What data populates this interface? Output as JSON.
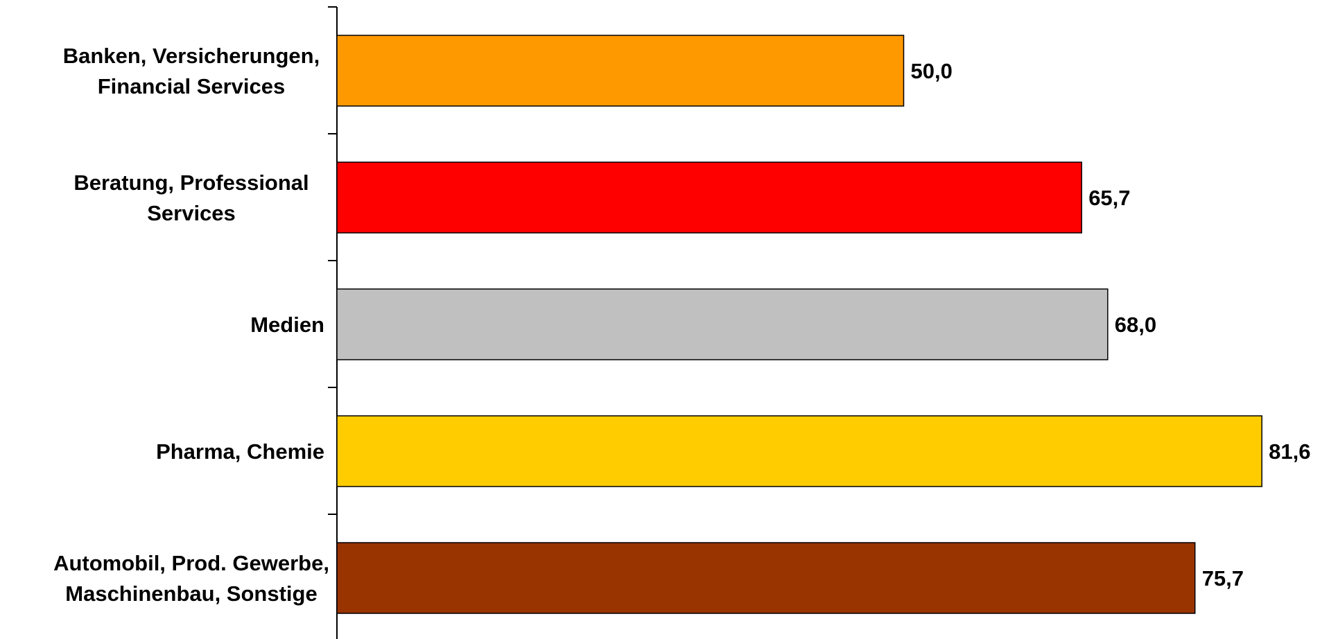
{
  "chart_data": {
    "type": "bar",
    "orientation": "horizontal",
    "title": "",
    "xlabel": "",
    "ylabel": "",
    "xlim": [
      0,
      100
    ],
    "grid": false,
    "legend": "none",
    "categories": [
      [
        "Banken, Versicherungen,",
        "Financial Services"
      ],
      [
        "Beratung, Professional",
        "Services"
      ],
      [
        "Medien"
      ],
      [
        "Pharma, Chemie"
      ],
      [
        "Automobil, Prod. Gewerbe,",
        "Maschinenbau, Sonstige"
      ]
    ],
    "values": [
      50.0,
      65.7,
      68.0,
      81.6,
      75.7
    ],
    "value_labels": [
      "50,0",
      "65,7",
      "68,0",
      "81,6",
      "75,7"
    ],
    "colors": [
      "#FF9900",
      "#FF0000",
      "#C0C0C0",
      "#FFCC00",
      "#993300"
    ]
  }
}
